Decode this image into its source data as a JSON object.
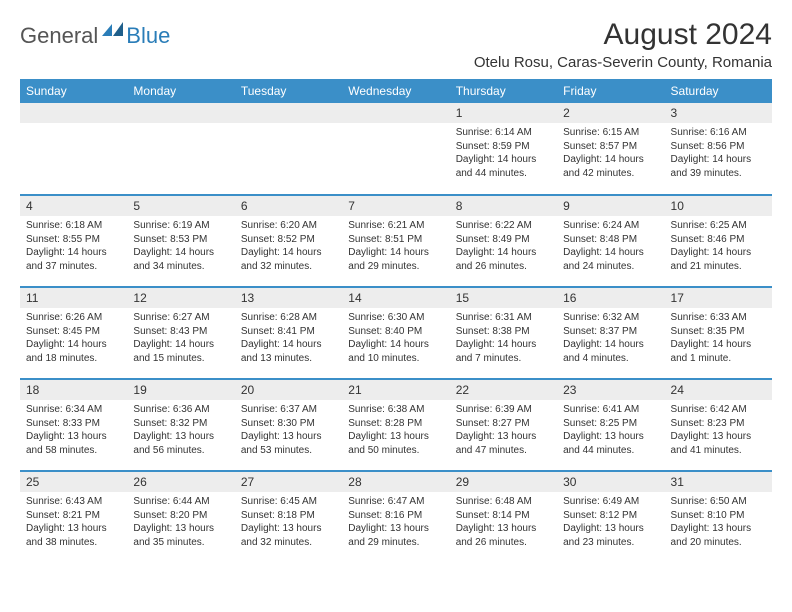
{
  "logo": {
    "text1": "General",
    "text2": "Blue"
  },
  "title": "August 2024",
  "location": "Otelu Rosu, Caras-Severin County, Romania",
  "colors": {
    "header_bg": "#3b8fc8",
    "header_text": "#ffffff",
    "daynum_bg": "#ededed",
    "border": "#3b8fc8",
    "text": "#333333",
    "logo_blue": "#2a7db8"
  },
  "dayHeaders": [
    "Sunday",
    "Monday",
    "Tuesday",
    "Wednesday",
    "Thursday",
    "Friday",
    "Saturday"
  ],
  "weeks": [
    [
      {
        "n": "",
        "sr": "",
        "ss": "",
        "dl": ""
      },
      {
        "n": "",
        "sr": "",
        "ss": "",
        "dl": ""
      },
      {
        "n": "",
        "sr": "",
        "ss": "",
        "dl": ""
      },
      {
        "n": "",
        "sr": "",
        "ss": "",
        "dl": ""
      },
      {
        "n": "1",
        "sr": "Sunrise: 6:14 AM",
        "ss": "Sunset: 8:59 PM",
        "dl": "Daylight: 14 hours and 44 minutes."
      },
      {
        "n": "2",
        "sr": "Sunrise: 6:15 AM",
        "ss": "Sunset: 8:57 PM",
        "dl": "Daylight: 14 hours and 42 minutes."
      },
      {
        "n": "3",
        "sr": "Sunrise: 6:16 AM",
        "ss": "Sunset: 8:56 PM",
        "dl": "Daylight: 14 hours and 39 minutes."
      }
    ],
    [
      {
        "n": "4",
        "sr": "Sunrise: 6:18 AM",
        "ss": "Sunset: 8:55 PM",
        "dl": "Daylight: 14 hours and 37 minutes."
      },
      {
        "n": "5",
        "sr": "Sunrise: 6:19 AM",
        "ss": "Sunset: 8:53 PM",
        "dl": "Daylight: 14 hours and 34 minutes."
      },
      {
        "n": "6",
        "sr": "Sunrise: 6:20 AM",
        "ss": "Sunset: 8:52 PM",
        "dl": "Daylight: 14 hours and 32 minutes."
      },
      {
        "n": "7",
        "sr": "Sunrise: 6:21 AM",
        "ss": "Sunset: 8:51 PM",
        "dl": "Daylight: 14 hours and 29 minutes."
      },
      {
        "n": "8",
        "sr": "Sunrise: 6:22 AM",
        "ss": "Sunset: 8:49 PM",
        "dl": "Daylight: 14 hours and 26 minutes."
      },
      {
        "n": "9",
        "sr": "Sunrise: 6:24 AM",
        "ss": "Sunset: 8:48 PM",
        "dl": "Daylight: 14 hours and 24 minutes."
      },
      {
        "n": "10",
        "sr": "Sunrise: 6:25 AM",
        "ss": "Sunset: 8:46 PM",
        "dl": "Daylight: 14 hours and 21 minutes."
      }
    ],
    [
      {
        "n": "11",
        "sr": "Sunrise: 6:26 AM",
        "ss": "Sunset: 8:45 PM",
        "dl": "Daylight: 14 hours and 18 minutes."
      },
      {
        "n": "12",
        "sr": "Sunrise: 6:27 AM",
        "ss": "Sunset: 8:43 PM",
        "dl": "Daylight: 14 hours and 15 minutes."
      },
      {
        "n": "13",
        "sr": "Sunrise: 6:28 AM",
        "ss": "Sunset: 8:41 PM",
        "dl": "Daylight: 14 hours and 13 minutes."
      },
      {
        "n": "14",
        "sr": "Sunrise: 6:30 AM",
        "ss": "Sunset: 8:40 PM",
        "dl": "Daylight: 14 hours and 10 minutes."
      },
      {
        "n": "15",
        "sr": "Sunrise: 6:31 AM",
        "ss": "Sunset: 8:38 PM",
        "dl": "Daylight: 14 hours and 7 minutes."
      },
      {
        "n": "16",
        "sr": "Sunrise: 6:32 AM",
        "ss": "Sunset: 8:37 PM",
        "dl": "Daylight: 14 hours and 4 minutes."
      },
      {
        "n": "17",
        "sr": "Sunrise: 6:33 AM",
        "ss": "Sunset: 8:35 PM",
        "dl": "Daylight: 14 hours and 1 minute."
      }
    ],
    [
      {
        "n": "18",
        "sr": "Sunrise: 6:34 AM",
        "ss": "Sunset: 8:33 PM",
        "dl": "Daylight: 13 hours and 58 minutes."
      },
      {
        "n": "19",
        "sr": "Sunrise: 6:36 AM",
        "ss": "Sunset: 8:32 PM",
        "dl": "Daylight: 13 hours and 56 minutes."
      },
      {
        "n": "20",
        "sr": "Sunrise: 6:37 AM",
        "ss": "Sunset: 8:30 PM",
        "dl": "Daylight: 13 hours and 53 minutes."
      },
      {
        "n": "21",
        "sr": "Sunrise: 6:38 AM",
        "ss": "Sunset: 8:28 PM",
        "dl": "Daylight: 13 hours and 50 minutes."
      },
      {
        "n": "22",
        "sr": "Sunrise: 6:39 AM",
        "ss": "Sunset: 8:27 PM",
        "dl": "Daylight: 13 hours and 47 minutes."
      },
      {
        "n": "23",
        "sr": "Sunrise: 6:41 AM",
        "ss": "Sunset: 8:25 PM",
        "dl": "Daylight: 13 hours and 44 minutes."
      },
      {
        "n": "24",
        "sr": "Sunrise: 6:42 AM",
        "ss": "Sunset: 8:23 PM",
        "dl": "Daylight: 13 hours and 41 minutes."
      }
    ],
    [
      {
        "n": "25",
        "sr": "Sunrise: 6:43 AM",
        "ss": "Sunset: 8:21 PM",
        "dl": "Daylight: 13 hours and 38 minutes."
      },
      {
        "n": "26",
        "sr": "Sunrise: 6:44 AM",
        "ss": "Sunset: 8:20 PM",
        "dl": "Daylight: 13 hours and 35 minutes."
      },
      {
        "n": "27",
        "sr": "Sunrise: 6:45 AM",
        "ss": "Sunset: 8:18 PM",
        "dl": "Daylight: 13 hours and 32 minutes."
      },
      {
        "n": "28",
        "sr": "Sunrise: 6:47 AM",
        "ss": "Sunset: 8:16 PM",
        "dl": "Daylight: 13 hours and 29 minutes."
      },
      {
        "n": "29",
        "sr": "Sunrise: 6:48 AM",
        "ss": "Sunset: 8:14 PM",
        "dl": "Daylight: 13 hours and 26 minutes."
      },
      {
        "n": "30",
        "sr": "Sunrise: 6:49 AM",
        "ss": "Sunset: 8:12 PM",
        "dl": "Daylight: 13 hours and 23 minutes."
      },
      {
        "n": "31",
        "sr": "Sunrise: 6:50 AM",
        "ss": "Sunset: 8:10 PM",
        "dl": "Daylight: 13 hours and 20 minutes."
      }
    ]
  ]
}
